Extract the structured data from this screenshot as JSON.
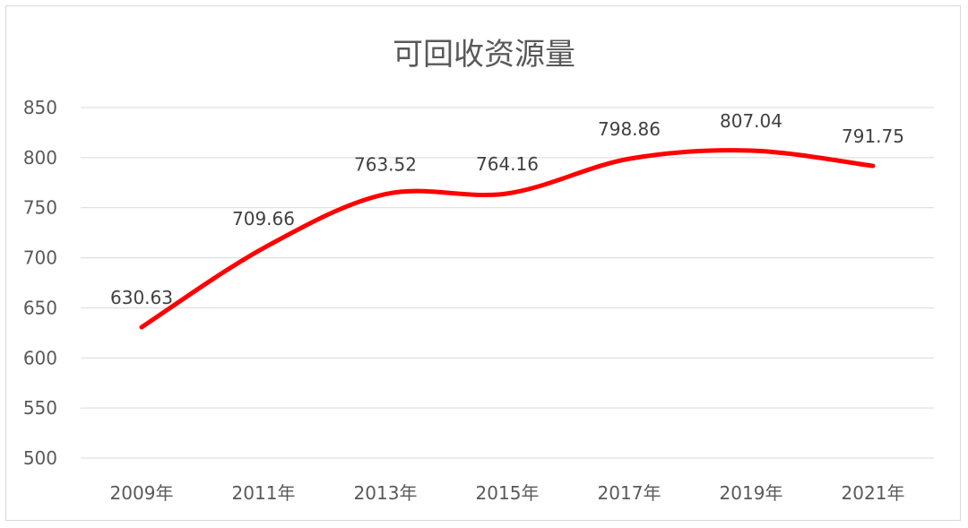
{
  "chart_data": {
    "type": "line",
    "title": "可回收资源量",
    "categories": [
      "2009年",
      "2011年",
      "2013年",
      "2015年",
      "2017年",
      "2019年",
      "2021年"
    ],
    "series": [
      {
        "values": [
          630.63,
          709.66,
          763.52,
          764.16,
          798.86,
          807.04,
          791.75
        ],
        "data_labels": [
          "630.63",
          "709.66",
          "763.52",
          "764.16",
          "798.86",
          "807.04",
          "791.75"
        ]
      }
    ],
    "yticks": [
      "500",
      "550",
      "600",
      "650",
      "700",
      "750",
      "800",
      "850"
    ],
    "ylim": [
      500,
      850
    ],
    "smooth": true,
    "grid": "horizontal",
    "line_color": "#ff0000",
    "xlabel": "",
    "ylabel": ""
  }
}
